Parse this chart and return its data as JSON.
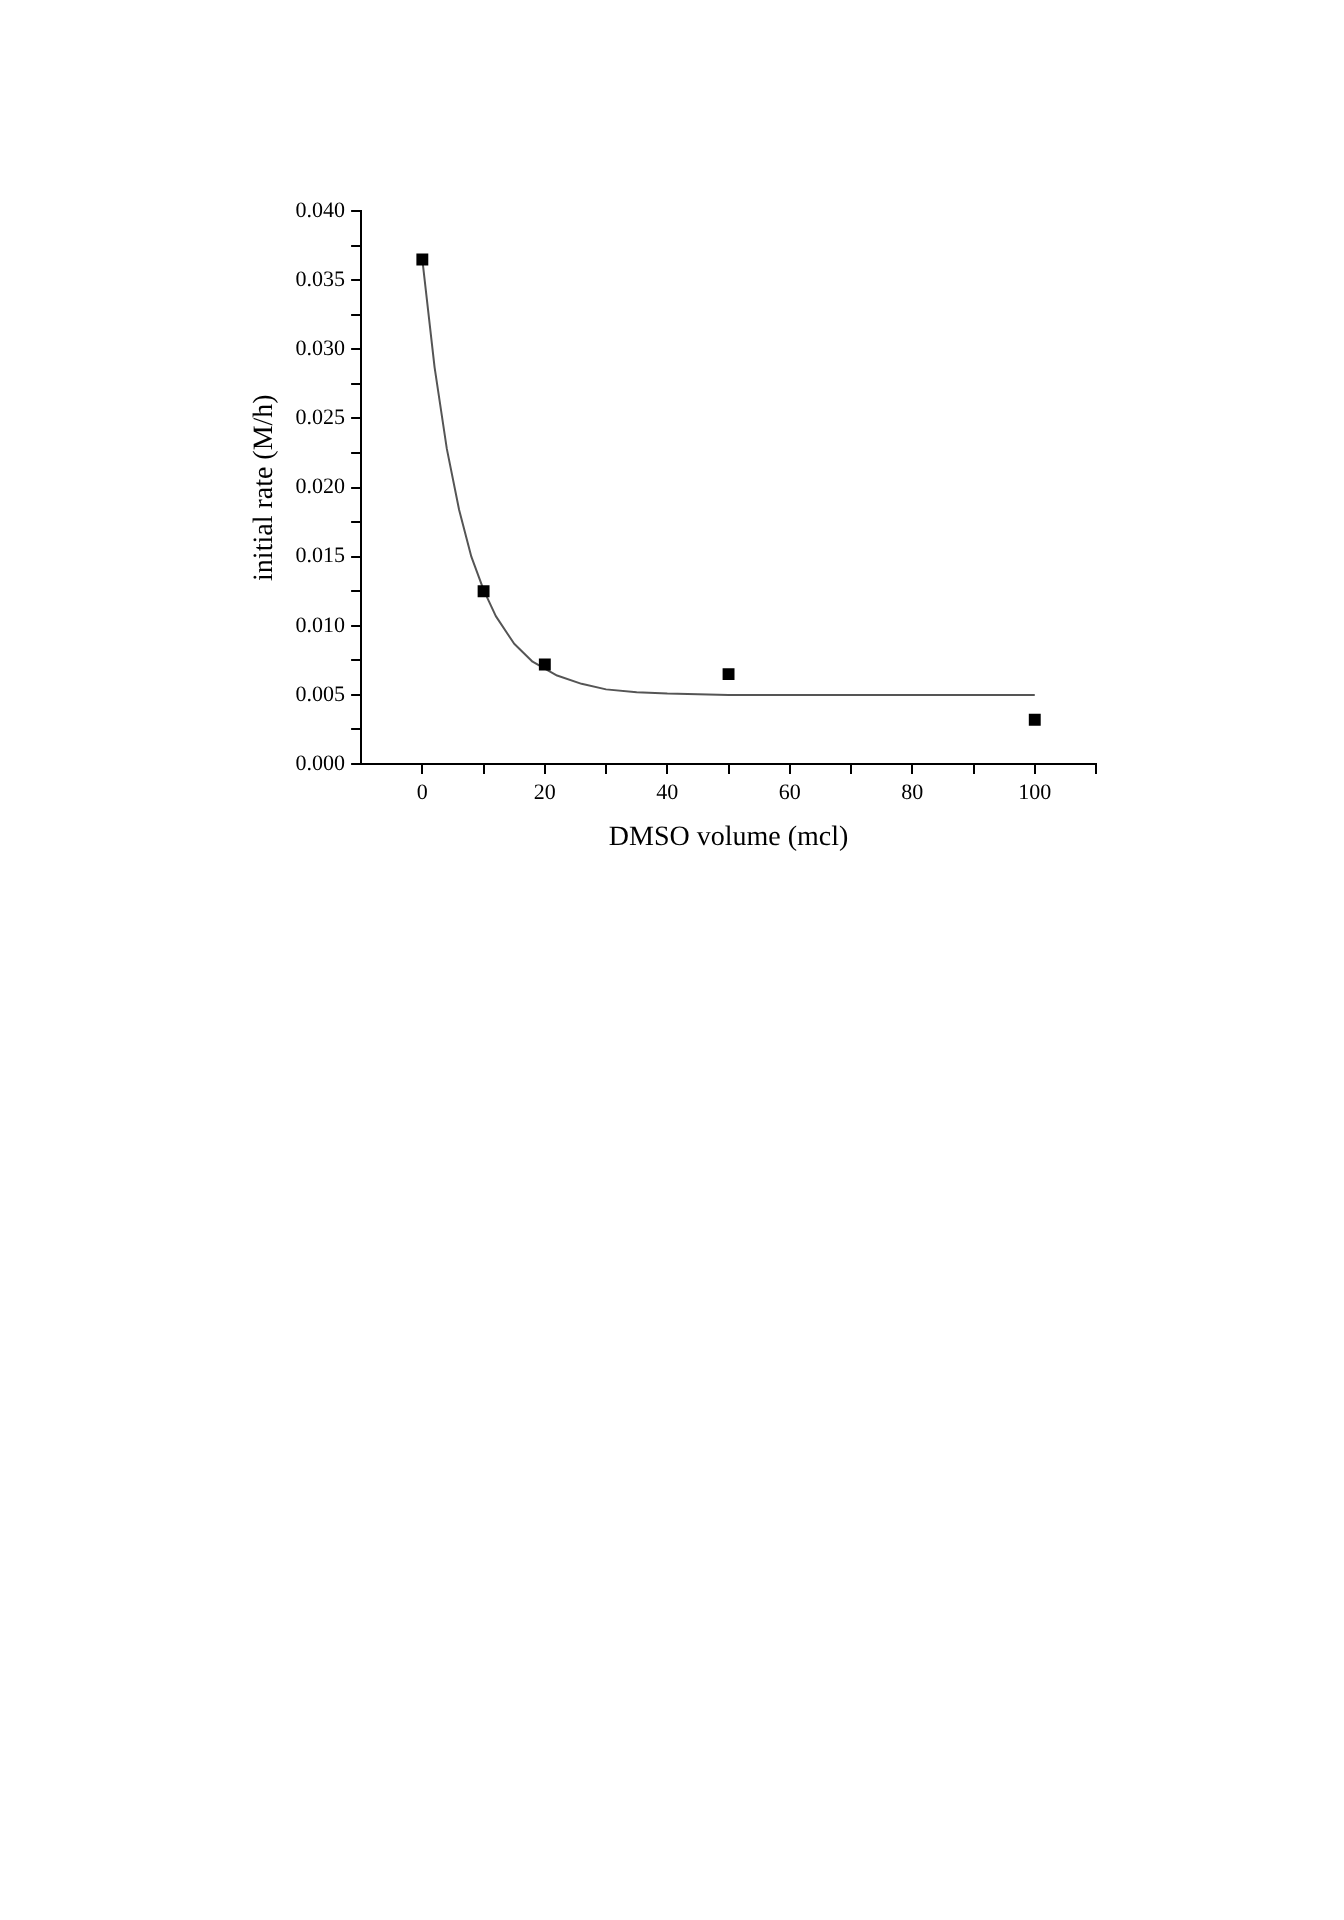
{
  "chart_data": {
    "type": "scatter",
    "xlabel": "DMSO volume (mcl)",
    "ylabel": "initial rate (M/h)",
    "xlim": [
      -10,
      110
    ],
    "xticks": [
      0,
      {
        "value": 10,
        "label": null
      },
      20,
      {
        "value": 30,
        "label": null
      },
      40,
      {
        "value": 50,
        "label": null
      },
      60,
      {
        "value": 70,
        "label": null
      },
      80,
      {
        "value": 90,
        "label": null
      },
      100,
      {
        "value": 110,
        "label": null
      }
    ],
    "ylim": [
      0,
      0.04
    ],
    "yticks": [
      {
        "value": 0,
        "label": "0.000"
      },
      {
        "value": 0.0025,
        "label": null
      },
      {
        "value": 0.005,
        "label": "0.005"
      },
      {
        "value": 0.0075,
        "label": null
      },
      {
        "value": 0.01,
        "label": "0.010"
      },
      {
        "value": 0.0125,
        "label": null
      },
      {
        "value": 0.015,
        "label": "0.015"
      },
      {
        "value": 0.0175,
        "label": null
      },
      {
        "value": 0.02,
        "label": "0.020"
      },
      {
        "value": 0.0225,
        "label": null
      },
      {
        "value": 0.025,
        "label": "0.025"
      },
      {
        "value": 0.0275,
        "label": null
      },
      {
        "value": 0.03,
        "label": "0.030"
      },
      {
        "value": 0.0325,
        "label": null
      },
      {
        "value": 0.035,
        "label": "0.035"
      },
      {
        "value": 0.0375,
        "label": null
      },
      {
        "value": 0.04,
        "label": "0.040"
      }
    ],
    "grid": false,
    "legend": false,
    "series": [
      {
        "type": "scatter",
        "marker": "square",
        "color": "#000000",
        "x": [
          0,
          10,
          20,
          50,
          100
        ],
        "values": [
          0.0365,
          0.0125,
          0.0072,
          0.0065,
          0.0032
        ]
      },
      {
        "type": "line",
        "marker": "none",
        "line_style": "solid",
        "color": "#555555",
        "x": [
          0,
          2,
          4,
          6,
          8,
          10,
          12,
          15,
          18,
          22,
          26,
          30,
          35,
          40,
          50,
          100
        ],
        "values": [
          0.0365,
          0.0287,
          0.0228,
          0.0184,
          0.015,
          0.0126,
          0.0107,
          0.0087,
          0.0074,
          0.0064,
          0.0058,
          0.0054,
          0.0052,
          0.0051,
          0.005,
          0.005
        ]
      }
    ]
  }
}
